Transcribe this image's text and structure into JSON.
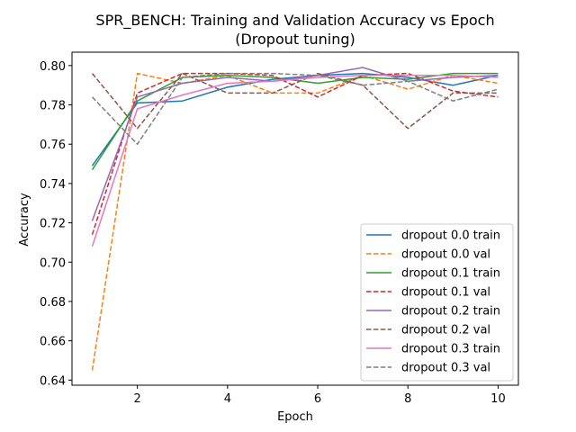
{
  "chart_data": {
    "type": "line",
    "title": "SPR_BENCH: Training and Validation Accuracy vs Epoch",
    "subtitle": "(Dropout tuning)",
    "xlabel": "Epoch",
    "ylabel": "Accuracy",
    "xlim": [
      0.55,
      10.45
    ],
    "ylim": [
      0.6374,
      0.8068
    ],
    "xticks": [
      2,
      4,
      6,
      8,
      10
    ],
    "yticks": [
      0.64,
      0.66,
      0.68,
      0.7,
      0.72,
      0.74,
      0.76,
      0.78,
      0.8
    ],
    "grid": false,
    "legend_position": "lower-right",
    "x": [
      1,
      2,
      3,
      4,
      5,
      6,
      7,
      8,
      9,
      10
    ],
    "series": [
      {
        "name": "dropout 0.0 train",
        "color": "#1f77b4",
        "dash": "solid",
        "values": [
          0.749,
          0.781,
          0.782,
          0.789,
          0.793,
          0.795,
          0.796,
          0.794,
          0.79,
          0.795
        ]
      },
      {
        "name": "dropout 0.0 val",
        "color": "#ff7f0e",
        "dash": "dashed",
        "values": [
          0.645,
          0.796,
          0.791,
          0.795,
          0.786,
          0.786,
          0.795,
          0.788,
          0.795,
          0.791
        ]
      },
      {
        "name": "dropout 0.1 train",
        "color": "#2ca02c",
        "dash": "solid",
        "values": [
          0.747,
          0.782,
          0.794,
          0.795,
          0.794,
          0.791,
          0.794,
          0.793,
          0.796,
          0.796
        ]
      },
      {
        "name": "dropout 0.1 val",
        "color": "#d62728",
        "dash": "dashed",
        "values": [
          0.714,
          0.786,
          0.796,
          0.796,
          0.795,
          0.784,
          0.795,
          0.796,
          0.787,
          0.784
        ]
      },
      {
        "name": "dropout 0.2 train",
        "color": "#9467bd",
        "dash": "solid",
        "values": [
          0.721,
          0.784,
          0.791,
          0.794,
          0.792,
          0.795,
          0.799,
          0.792,
          0.794,
          0.795
        ]
      },
      {
        "name": "dropout 0.2 val",
        "color": "#8c564b",
        "dash": "dashed",
        "values": [
          0.796,
          0.768,
          0.796,
          0.786,
          0.786,
          0.796,
          0.79,
          0.768,
          0.786,
          0.786
        ]
      },
      {
        "name": "dropout 0.3 train",
        "color": "#e377c2",
        "dash": "solid",
        "values": [
          0.708,
          0.778,
          0.785,
          0.791,
          0.792,
          0.794,
          0.795,
          0.795,
          0.795,
          0.794
        ]
      },
      {
        "name": "dropout 0.3 val",
        "color": "#7f7f7f",
        "dash": "dashed",
        "values": [
          0.784,
          0.76,
          0.794,
          0.796,
          0.796,
          0.795,
          0.79,
          0.792,
          0.782,
          0.788
        ]
      }
    ]
  }
}
